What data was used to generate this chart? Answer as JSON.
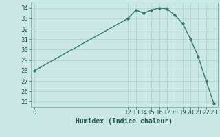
{
  "x": [
    0,
    12,
    13,
    14,
    15,
    16,
    17,
    18,
    19,
    20,
    21,
    22,
    23
  ],
  "y": [
    28,
    33,
    33.8,
    33.5,
    33.8,
    34,
    33.9,
    33.3,
    32.5,
    31,
    29.3,
    27,
    24.8
  ],
  "line_color": "#2e7d6e",
  "marker_color": "#2e7d6e",
  "bg_color": "#cce8e4",
  "grid_color": "#aed4cf",
  "xlabel": "Humidex (Indice chaleur)",
  "xlim": [
    -0.5,
    23.5
  ],
  "ylim": [
    24.5,
    34.5
  ],
  "yticks": [
    25,
    26,
    27,
    28,
    29,
    30,
    31,
    32,
    33,
    34
  ],
  "xticks": [
    0,
    12,
    13,
    14,
    15,
    16,
    17,
    18,
    19,
    20,
    21,
    22,
    23
  ],
  "xlabel_fontsize": 7,
  "tick_fontsize": 6.5,
  "tick_color": "#1a5a50"
}
